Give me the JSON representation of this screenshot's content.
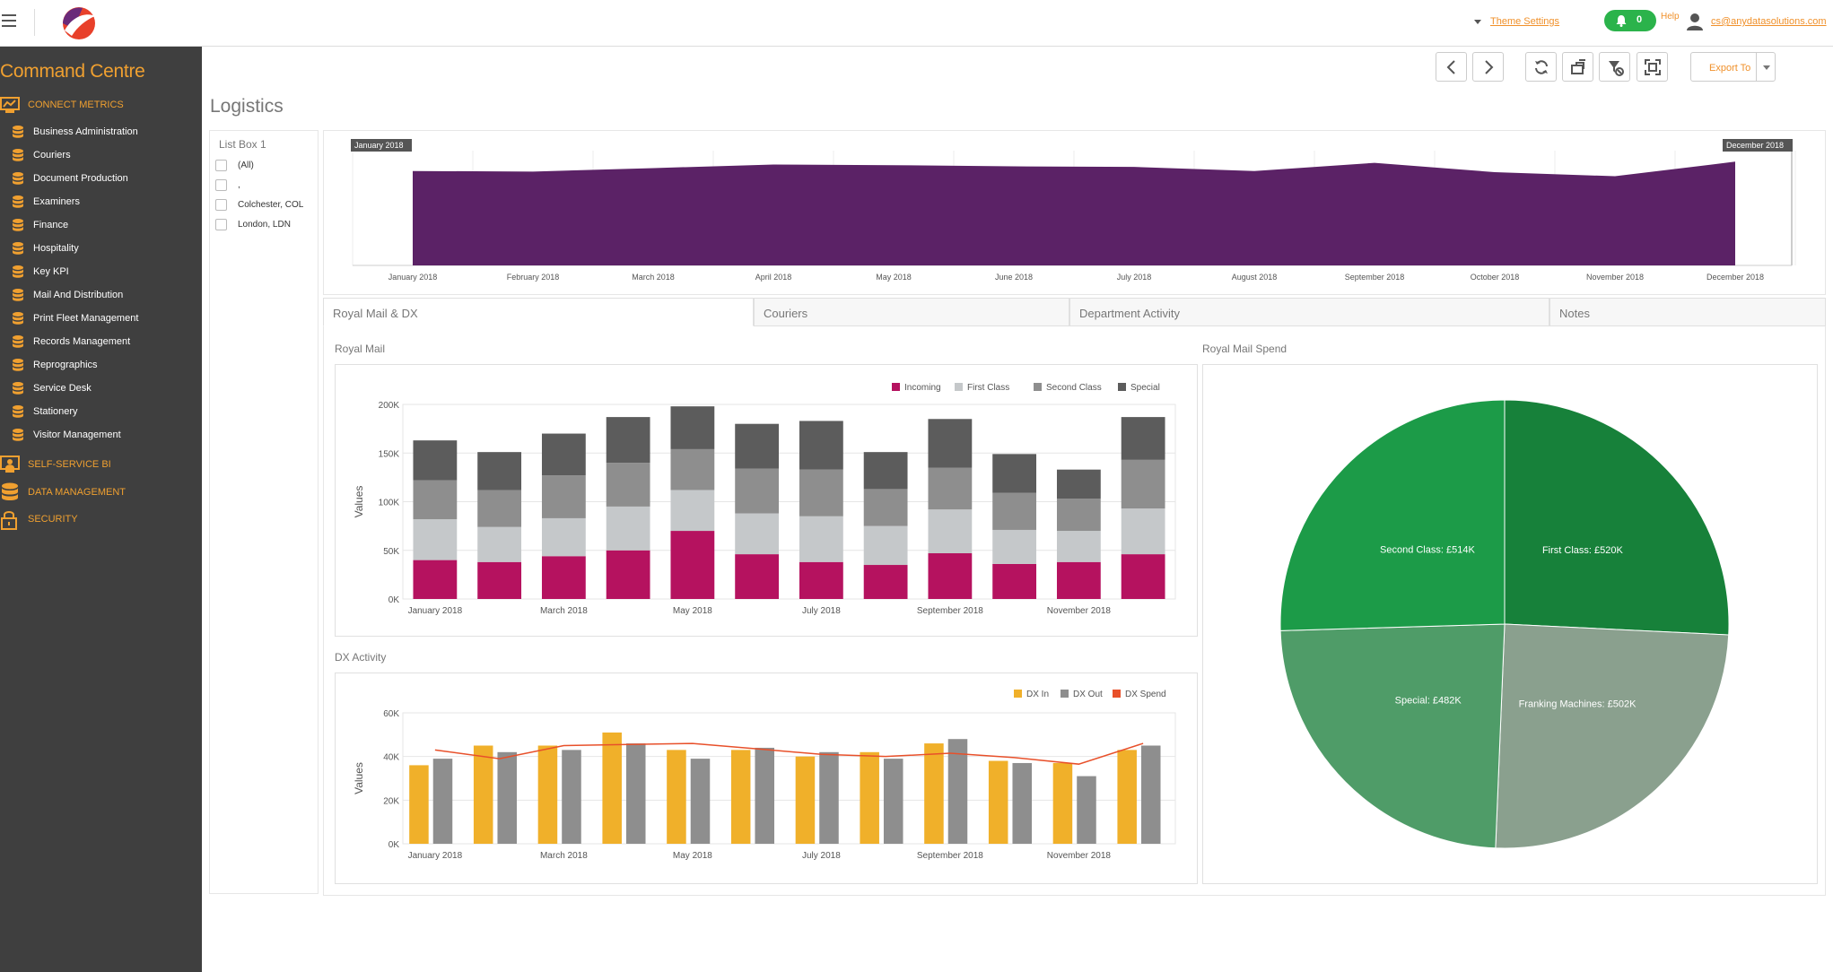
{
  "header": {
    "theme_settings": "Theme Settings",
    "notifications_count": "0",
    "help": "Help",
    "user_email": "cs@anydatasolutions.com"
  },
  "sidebar": {
    "title": "Command Centre",
    "sections": [
      {
        "label": "CONNECT METRICS",
        "icon": "connect-metrics-icon"
      },
      {
        "label": "SELF-SERVICE BI",
        "icon": "self-service-bi-icon"
      },
      {
        "label": "DATA MANAGEMENT",
        "icon": "database-icon"
      },
      {
        "label": "SECURITY",
        "icon": "lock-icon"
      }
    ],
    "items": [
      "Business Administration",
      "Couriers",
      "Document Production",
      "Examiners",
      "Finance",
      "Hospitality",
      "Key KPI",
      "Mail And Distribution",
      "Print Fleet Management",
      "Records Management",
      "Reprographics",
      "Service Desk",
      "Stationery",
      "Visitor Management"
    ]
  },
  "page": {
    "title": "Logistics"
  },
  "toolbar": {
    "export_label": "Export To",
    "buttons": [
      "back-icon",
      "forward-icon",
      "refresh-icon",
      "clear-selections-icon",
      "filter-icon",
      "fullscreen-icon"
    ]
  },
  "listbox": {
    "title": "List Box 1",
    "items": [
      "(All)",
      ",",
      "Colchester, COL",
      "London, LDN"
    ]
  },
  "timeline": {
    "start_label": "January 2018",
    "end_label": "December 2018",
    "months": [
      "January 2018",
      "February 2018",
      "March 2018",
      "April 2018",
      "May 2018",
      "June 2018",
      "July 2018",
      "August 2018",
      "September 2018",
      "October 2018",
      "November 2018",
      "December 2018"
    ],
    "values": [
      162,
      161,
      167,
      173,
      172,
      170,
      169,
      162,
      176,
      160,
      153,
      178
    ],
    "fill": "#5b2266"
  },
  "tabs": [
    "Royal Mail & DX",
    "Couriers",
    "Department Activity",
    "Notes"
  ],
  "royal_mail": {
    "title": "Royal Mail"
  },
  "dx": {
    "title": "DX Activity"
  },
  "spend": {
    "title": "Royal Mail Spend"
  },
  "chart_data": [
    {
      "type": "bar",
      "stacked": true,
      "title": "Royal Mail",
      "ylabel": "Values",
      "ylim": [
        0,
        200000
      ],
      "yticks": [
        "0K",
        "50K",
        "100K",
        "150K",
        "200K"
      ],
      "xtick_labels": [
        "January 2018",
        "March 2018",
        "May 2018",
        "July 2018",
        "September 2018",
        "November 2018"
      ],
      "categories": [
        "January 2018",
        "February 2018",
        "March 2018",
        "April 2018",
        "May 2018",
        "June 2018",
        "July 2018",
        "August 2018",
        "September 2018",
        "October 2018",
        "November 2018",
        "December 2018"
      ],
      "legend": "top-right",
      "series": [
        {
          "name": "Incoming",
          "color": "#b5125f",
          "values": [
            40000,
            38000,
            44000,
            50000,
            70000,
            46000,
            38000,
            35000,
            47000,
            36000,
            38000,
            46000
          ]
        },
        {
          "name": "First Class",
          "color": "#c5c8ca",
          "values": [
            42000,
            36000,
            39000,
            45000,
            42000,
            42000,
            47000,
            40000,
            45000,
            35000,
            32000,
            47000
          ]
        },
        {
          "name": "Second Class",
          "color": "#8e8e8e",
          "values": [
            40000,
            38000,
            44000,
            45000,
            42000,
            46000,
            48000,
            38000,
            43000,
            38000,
            33000,
            50000
          ]
        },
        {
          "name": "Special",
          "color": "#5c5c5c",
          "values": [
            41000,
            39000,
            43000,
            47000,
            44000,
            46000,
            50000,
            38000,
            50000,
            40000,
            30000,
            44000
          ]
        }
      ]
    },
    {
      "type": "bar",
      "title": "DX Activity",
      "ylabel": "Values",
      "ylim": [
        0,
        60000
      ],
      "yticks": [
        "0K",
        "20K",
        "40K",
        "60K"
      ],
      "xtick_labels": [
        "January 2018",
        "March 2018",
        "May 2018",
        "July 2018",
        "September 2018",
        "November 2018"
      ],
      "categories": [
        "January 2018",
        "February 2018",
        "March 2018",
        "April 2018",
        "May 2018",
        "June 2018",
        "July 2018",
        "August 2018",
        "September 2018",
        "October 2018",
        "November 2018",
        "December 2018"
      ],
      "legend": "top-right",
      "series": [
        {
          "name": "DX In",
          "color": "#f0b02a",
          "values": [
            36000,
            45000,
            45000,
            51000,
            43000,
            43000,
            40000,
            42000,
            46000,
            38000,
            37000,
            43000
          ]
        },
        {
          "name": "DX Out",
          "color": "#8e8e8e",
          "values": [
            39000,
            42000,
            43000,
            46000,
            39000,
            44000,
            42000,
            39000,
            48000,
            37000,
            31000,
            45000
          ]
        },
        {
          "name": "DX Spend",
          "type": "line",
          "color": "#e8502a",
          "values": [
            43000,
            39000,
            45000,
            45500,
            46000,
            43500,
            41000,
            40000,
            41500,
            39500,
            36500,
            46000
          ]
        }
      ]
    },
    {
      "type": "pie",
      "title": "Royal Mail Spend",
      "slices": [
        {
          "label": "First Class: £520K",
          "value": 520,
          "color": "#17813a"
        },
        {
          "label": "Franking Machines: £502K",
          "value": 502,
          "color": "#8aa08e"
        },
        {
          "label": "Special: £482K",
          "value": 482,
          "color": "#4f9c68"
        },
        {
          "label": "Second Class: £514K",
          "value": 514,
          "color": "#1c9b48"
        }
      ]
    }
  ]
}
